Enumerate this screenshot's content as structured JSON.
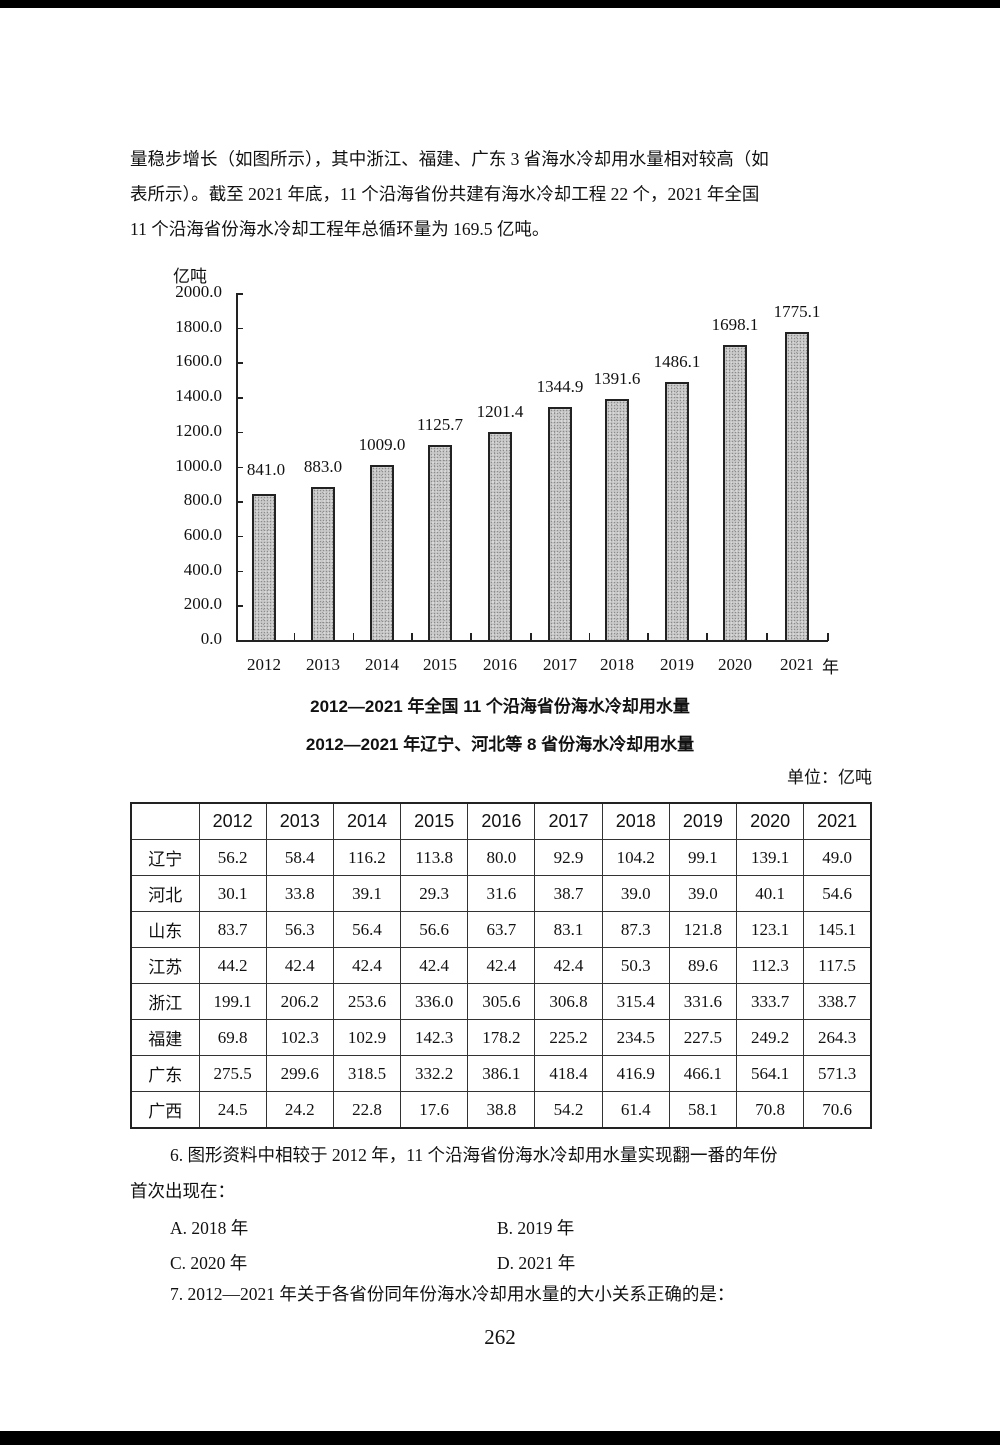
{
  "intro_paragraph": {
    "lines": [
      "量稳步增长（如图所示），其中浙江、福建、广东 3 省海水冷却用水量相对较高（如",
      "表所示）。截至 2021 年底，11 个沿海省份共建有海水冷却工程 22 个，2021 年全国",
      "11 个沿海省份海水冷却工程年总循环量为 169.5 亿吨。"
    ]
  },
  "chart_data": {
    "type": "bar",
    "title": "2012—2021 年全国 11 个沿海省份海水冷却用水量",
    "xlabel": "年",
    "ylabel": "亿吨",
    "categories": [
      "2012",
      "2013",
      "2014",
      "2015",
      "2016",
      "2017",
      "2018",
      "2019",
      "2020",
      "2021"
    ],
    "values": [
      841.0,
      883.0,
      1009.0,
      1125.7,
      1201.4,
      1344.9,
      1391.6,
      1486.1,
      1698.1,
      1775.1
    ],
    "value_labels": [
      "841.0",
      "883.0",
      "1009.0",
      "1125.7",
      "1201.4",
      "1344.9",
      "1391.6",
      "1486.1",
      "1698.1",
      "1775.1"
    ],
    "yticks": [
      "0.0",
      "200.0",
      "400.0",
      "600.0",
      "800.0",
      "1000.0",
      "1200.0",
      "1400.0",
      "1600.0",
      "1800.0",
      "2000.0"
    ],
    "ylim": [
      0,
      2000
    ],
    "grid": false,
    "legend": null,
    "bar_fill": "stippled gray"
  },
  "chart_caption": "2012—2021 年全国 11 个沿海省份海水冷却用水量",
  "table": {
    "title": "2012—2021 年辽宁、河北等 8 省份海水冷却用水量",
    "unit": "单位：亿吨",
    "columns": [
      "",
      "2012",
      "2013",
      "2014",
      "2015",
      "2016",
      "2017",
      "2018",
      "2019",
      "2020",
      "2021"
    ],
    "rows": [
      {
        "province": "辽宁",
        "values": [
          "56.2",
          "58.4",
          "116.2",
          "113.8",
          "80.0",
          "92.9",
          "104.2",
          "99.1",
          "139.1",
          "49.0"
        ]
      },
      {
        "province": "河北",
        "values": [
          "30.1",
          "33.8",
          "39.1",
          "29.3",
          "31.6",
          "38.7",
          "39.0",
          "39.0",
          "40.1",
          "54.6"
        ]
      },
      {
        "province": "山东",
        "values": [
          "83.7",
          "56.3",
          "56.4",
          "56.6",
          "63.7",
          "83.1",
          "87.3",
          "121.8",
          "123.1",
          "145.1"
        ]
      },
      {
        "province": "江苏",
        "values": [
          "44.2",
          "42.4",
          "42.4",
          "42.4",
          "42.4",
          "42.4",
          "50.3",
          "89.6",
          "112.3",
          "117.5"
        ]
      },
      {
        "province": "浙江",
        "values": [
          "199.1",
          "206.2",
          "253.6",
          "336.0",
          "305.6",
          "306.8",
          "315.4",
          "331.6",
          "333.7",
          "338.7"
        ]
      },
      {
        "province": "福建",
        "values": [
          "69.8",
          "102.3",
          "102.9",
          "142.3",
          "178.2",
          "225.2",
          "234.5",
          "227.5",
          "249.2",
          "264.3"
        ]
      },
      {
        "province": "广东",
        "values": [
          "275.5",
          "299.6",
          "318.5",
          "332.2",
          "386.1",
          "418.4",
          "416.9",
          "466.1",
          "564.1",
          "571.3"
        ]
      },
      {
        "province": "广西",
        "values": [
          "24.5",
          "24.2",
          "22.8",
          "17.6",
          "38.8",
          "54.2",
          "61.4",
          "58.1",
          "70.8",
          "70.6"
        ]
      }
    ]
  },
  "questions": [
    {
      "stem_lines": [
        "6. 图形资料中相较于 2012 年，11 个沿海省份海水冷却用水量实现翻一番的年份",
        "首次出现在："
      ],
      "options": [
        "A. 2018 年",
        "B. 2019 年",
        "C. 2020 年",
        "D. 2021 年"
      ]
    },
    {
      "stem_lines": [
        "7. 2012—2021 年关于各省份同年份海水冷却用水量的大小关系正确的是："
      ],
      "options": []
    }
  ],
  "page_number": "262"
}
